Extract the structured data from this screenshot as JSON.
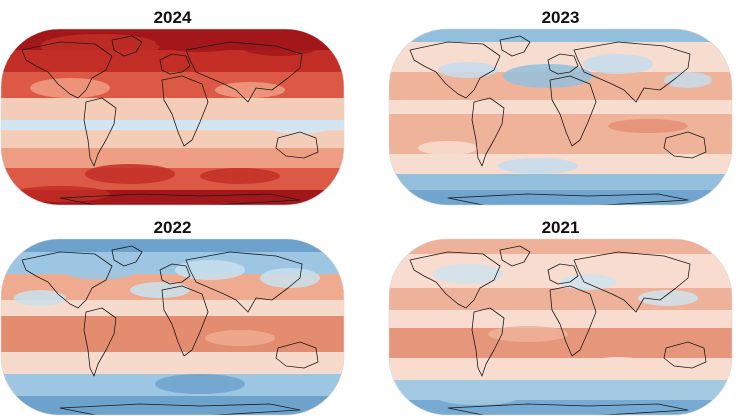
{
  "panels": [
    {
      "year": "2024",
      "style": "hot",
      "palette": [
        "#f4cdb9",
        "#ee9e82",
        "#dc5a45",
        "#c22e26",
        "#a3171b",
        "#d2e5f0"
      ]
    },
    {
      "year": "2023",
      "style": "mixed",
      "palette": [
        "#f7ddd0",
        "#efb39a",
        "#e58f74",
        "#c4dcec",
        "#93bfdd",
        "#6fa5cf"
      ]
    },
    {
      "year": "2022",
      "style": "cool",
      "palette": [
        "#f6dacb",
        "#eeab90",
        "#e48c6f",
        "#c8e0ee",
        "#9cc6e2",
        "#6da2cd"
      ]
    },
    {
      "year": "2021",
      "style": "mild",
      "palette": [
        "#f7dccf",
        "#eeb29a",
        "#e6977b",
        "#cfe3ef",
        "#a4c9e3",
        "#77aad2"
      ]
    }
  ],
  "colors": {
    "coastline": "#1b1b1b",
    "title": "#111111",
    "background": "#ffffff"
  }
}
